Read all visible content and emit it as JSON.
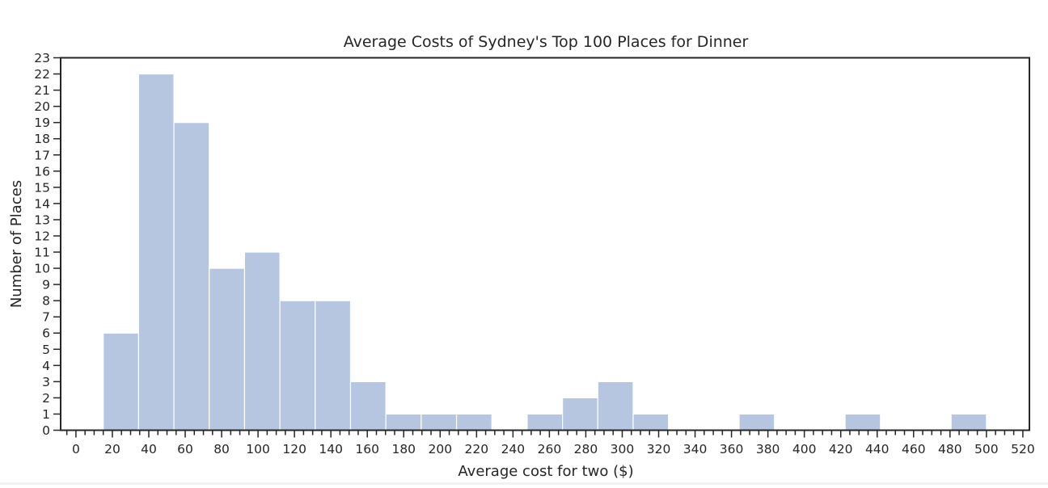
{
  "chart_data": {
    "type": "bar",
    "title": "Average Costs of Sydney's Top 100 Places for Dinner",
    "xlabel": "Average cost for two ($)",
    "ylabel": "Number of Places",
    "xlim": [
      -8.4,
      523.6
    ],
    "ylim": [
      0,
      23
    ],
    "x_ticks": [
      0,
      20,
      40,
      60,
      80,
      100,
      120,
      140,
      160,
      180,
      200,
      220,
      240,
      260,
      280,
      300,
      320,
      340,
      360,
      380,
      400,
      420,
      440,
      460,
      480,
      500,
      520
    ],
    "x_tick_labels": [
      "0",
      "20",
      "40",
      "60",
      "80",
      "100",
      "120",
      "140",
      "160",
      "180",
      "200",
      "220",
      "240",
      "260",
      "280",
      "300",
      "320",
      "340",
      "360",
      "380",
      "400",
      "420",
      "440",
      "460",
      "480",
      "500",
      "520"
    ],
    "x_minor_tick_step": 5,
    "y_ticks": [
      0,
      1,
      2,
      3,
      4,
      5,
      6,
      7,
      8,
      9,
      10,
      11,
      12,
      13,
      14,
      15,
      16,
      17,
      18,
      19,
      20,
      21,
      22,
      23
    ],
    "y_tick_labels": [
      "0",
      "1",
      "2",
      "3",
      "4",
      "5",
      "6",
      "7",
      "8",
      "9",
      "10",
      "11",
      "12",
      "13",
      "14",
      "15",
      "16",
      "17",
      "18",
      "19",
      "20",
      "21",
      "22",
      "23"
    ],
    "bin_edges": [
      15,
      34.4,
      53.8,
      73.2,
      92.6,
      112,
      131.4,
      150.8,
      170.2,
      189.6,
      209,
      228.4,
      247.8,
      267.2,
      286.6,
      306,
      325.4,
      344.8,
      364.2,
      383.6,
      403,
      422.4,
      441.8,
      461.2,
      480.6,
      500
    ],
    "values": [
      6,
      22,
      19,
      10,
      11,
      8,
      8,
      3,
      1,
      1,
      1,
      0,
      1,
      2,
      3,
      1,
      0,
      0,
      1,
      0,
      0,
      1,
      0,
      0,
      1
    ],
    "grid": false,
    "legend": "none",
    "colors": {
      "bar": "#b6c6e0",
      "bar_edge": "#ffffff",
      "axes": "#262626"
    }
  }
}
